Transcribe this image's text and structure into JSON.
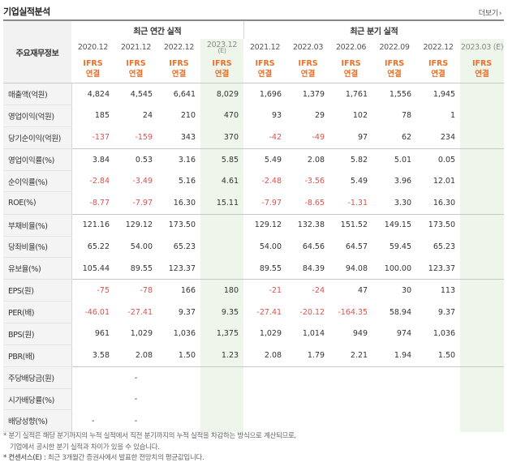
{
  "header": {
    "title": "기업실적분석",
    "more_label": "더보기",
    "more_arrow": "›"
  },
  "table": {
    "rowhead_label": "주요재무정보",
    "group_annual": "최근 연간 실적",
    "group_quarter": "최근 분기 실적",
    "ifrs_top": "IFRS",
    "ifrs_bottom": "연결",
    "annual_periods": [
      {
        "label": "2020.12",
        "est": ""
      },
      {
        "label": "2021.12",
        "est": ""
      },
      {
        "label": "2022.12",
        "est": ""
      },
      {
        "label": "2023.12",
        "est": "(E)"
      }
    ],
    "quarter_periods": [
      {
        "label": "2021.12"
      },
      {
        "label": "2022.03"
      },
      {
        "label": "2022.06"
      },
      {
        "label": "2022.09"
      },
      {
        "label": "2022.12"
      },
      {
        "label": "2023.03 (E)"
      }
    ],
    "rows": [
      {
        "label": "매출액(억원)",
        "values": [
          "4,824",
          "4,545",
          "6,641",
          "8,029",
          "1,696",
          "1,379",
          "1,761",
          "1,556",
          "1,945",
          ""
        ]
      },
      {
        "label": "영업이익(억원)",
        "values": [
          "185",
          "24",
          "210",
          "470",
          "93",
          "29",
          "102",
          "78",
          "1",
          ""
        ]
      },
      {
        "label": "당기순이익(억원)",
        "values": [
          "-137",
          "-159",
          "343",
          "370",
          "-42",
          "-49",
          "97",
          "62",
          "234",
          ""
        ]
      },
      {
        "label": "영업이익률(%)",
        "values": [
          "3.84",
          "0.53",
          "3.16",
          "5.85",
          "5.49",
          "2.08",
          "5.82",
          "5.01",
          "0.05",
          ""
        ]
      },
      {
        "label": "순이익률(%)",
        "values": [
          "-2.84",
          "-3.49",
          "5.16",
          "4.61",
          "-2.48",
          "-3.56",
          "5.49",
          "3.96",
          "12.01",
          ""
        ]
      },
      {
        "label": "ROE(%)",
        "values": [
          "-8.77",
          "-7.97",
          "16.30",
          "15.11",
          "-7.97",
          "-8.65",
          "-1.31",
          "3.30",
          "16.30",
          ""
        ]
      },
      {
        "label": "부채비율(%)",
        "values": [
          "121.16",
          "129.12",
          "173.50",
          "",
          "129.12",
          "132.38",
          "151.52",
          "149.15",
          "173.50",
          ""
        ]
      },
      {
        "label": "당좌비율(%)",
        "values": [
          "65.22",
          "54.00",
          "65.23",
          "",
          "54.00",
          "64.56",
          "64.57",
          "59.45",
          "65.23",
          ""
        ]
      },
      {
        "label": "유보율(%)",
        "values": [
          "105.44",
          "89.55",
          "123.37",
          "",
          "89.55",
          "84.39",
          "94.08",
          "100.00",
          "123.37",
          ""
        ]
      },
      {
        "label": "EPS(원)",
        "values": [
          "-75",
          "-78",
          "166",
          "180",
          "-21",
          "-24",
          "47",
          "30",
          "113",
          ""
        ]
      },
      {
        "label": "PER(배)",
        "values": [
          "-46.01",
          "-27.41",
          "9.37",
          "9.35",
          "-27.41",
          "-20.12",
          "-164.35",
          "58.94",
          "9.37",
          ""
        ]
      },
      {
        "label": "BPS(원)",
        "values": [
          "961",
          "1,029",
          "1,036",
          "1,375",
          "1,029",
          "1,014",
          "949",
          "974",
          "1,036",
          ""
        ]
      },
      {
        "label": "PBR(배)",
        "values": [
          "3.58",
          "2.08",
          "1.50",
          "1.23",
          "2.08",
          "1.79",
          "2.21",
          "1.94",
          "1.50",
          ""
        ]
      },
      {
        "label": "주당배당금(원)",
        "values": [
          "",
          "-",
          "",
          "",
          "",
          "",
          "",
          "",
          "",
          ""
        ]
      },
      {
        "label": "시가배당률(%)",
        "values": [
          "",
          "-",
          "",
          "",
          "",
          "",
          "",
          "",
          "",
          ""
        ]
      },
      {
        "label": "배당성향(%)",
        "values": [
          "-",
          "-",
          "",
          "",
          "",
          "",
          "",
          "",
          "",
          ""
        ]
      }
    ]
  },
  "notes": {
    "line1": "* 분기 실적은 해당 분기까지의 누적 실적에서 직전 분기까지의 누적 실적을 차감하는 방식으로 계산되므로,",
    "line2": "기업에서 공시한 분기 실적과 차이가 있을 수 있습니다.",
    "line3_prefix": "* 컨센서스(E) : ",
    "line3_rest": "최근 3개월간 증권사에서 발표한 전망치의 평균값입니다."
  },
  "colors": {
    "ifrs": "#e8702a",
    "negative": "#d9534f",
    "estimate_bg": "#eef5eb"
  }
}
